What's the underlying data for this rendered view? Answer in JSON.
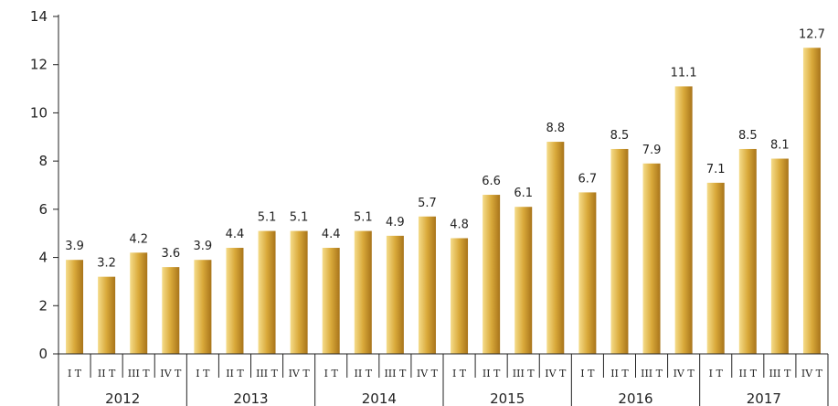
{
  "chart_data": {
    "type": "bar",
    "title": "",
    "xlabel": "",
    "ylabel": "",
    "ylim": [
      0,
      14
    ],
    "yticks": [
      0,
      2,
      4,
      6,
      8,
      10,
      12,
      14
    ],
    "grid": false,
    "quarters": [
      "I T",
      "II T",
      "III T",
      "IV T"
    ],
    "years": [
      "2012",
      "2013",
      "2014",
      "2015",
      "2016",
      "2017"
    ],
    "values": [
      3.9,
      3.2,
      4.2,
      3.6,
      3.9,
      4.4,
      5.1,
      5.1,
      4.4,
      5.1,
      4.9,
      5.7,
      4.8,
      6.6,
      6.1,
      8.8,
      6.7,
      8.5,
      7.9,
      11.1,
      7.1,
      8.5,
      8.1,
      12.7
    ],
    "value_labels": [
      "3.9",
      "3.2",
      "4.2",
      "3.6",
      "3.9",
      "4.4",
      "5.1",
      "5.1",
      "4.4",
      "5.1",
      "4.9",
      "5.7",
      "4.8",
      "6.6",
      "6.1",
      "8.8",
      "6.7",
      "8.5",
      "7.9",
      "11.1",
      "7.1",
      "8.5",
      "8.1",
      "12.7"
    ],
    "colors": {
      "bar_light": "#f5dc8a",
      "bar_mid": "#d9a93a",
      "bar_dark": "#a8741a",
      "axis": "#222222"
    }
  }
}
